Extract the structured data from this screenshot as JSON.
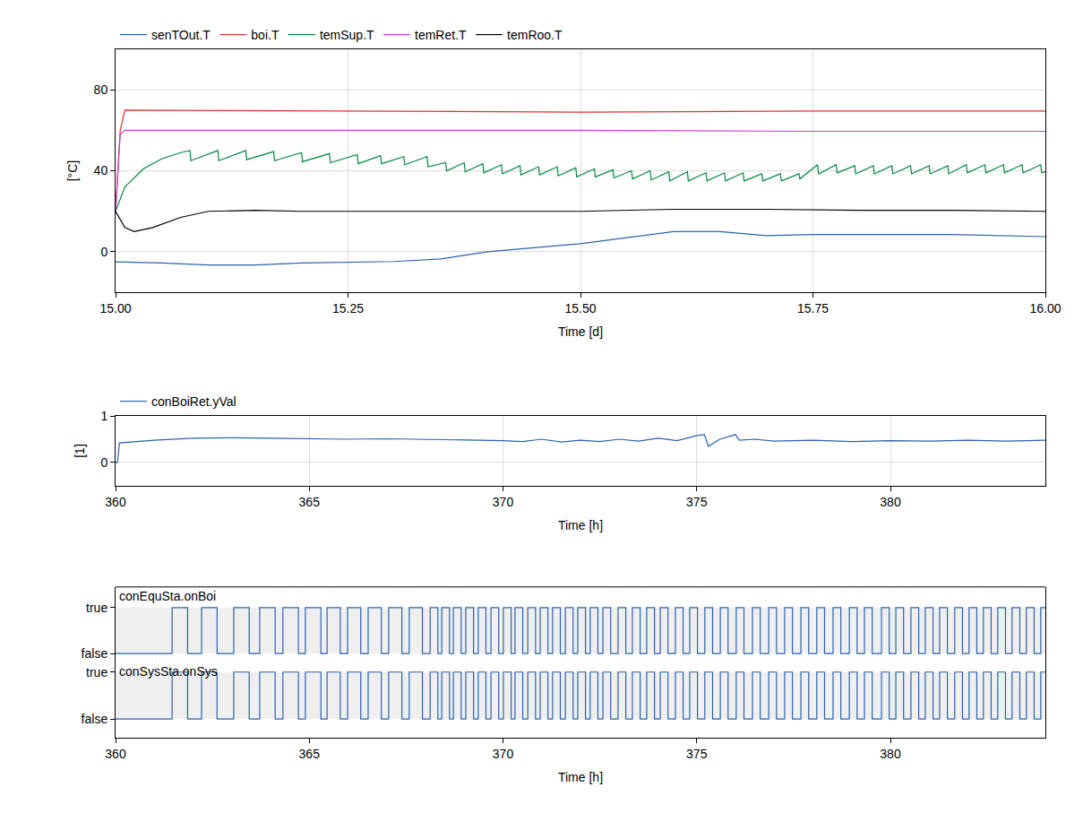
{
  "chart_data": [
    {
      "type": "line",
      "x_label": "Time [d]",
      "y_label": "[°C]",
      "grid": true,
      "legend": "top",
      "xlim": [
        15,
        16
      ],
      "xticks": [
        {
          "value": 15,
          "label": "15.00"
        },
        {
          "value": 15.25,
          "label": "15.25"
        },
        {
          "value": 15.5,
          "label": "15.50"
        },
        {
          "value": 15.75,
          "label": "15.75"
        },
        {
          "value": 16,
          "label": "16.00"
        }
      ],
      "ylim": [
        -20,
        100
      ],
      "yticks": [
        0,
        40,
        80
      ],
      "series": [
        {
          "name": "senTOut.T",
          "color": "#2a62b0",
          "x": [
            15,
            15.05,
            15.1,
            15.15,
            15.2,
            15.25,
            15.3,
            15.35,
            15.4,
            15.45,
            15.5,
            15.55,
            15.6,
            15.65,
            15.7,
            15.75,
            15.8,
            15.9,
            16
          ],
          "values": [
            -5,
            -5.5,
            -6.5,
            -6.5,
            -5.5,
            -5,
            -4.8,
            -3.5,
            0,
            2,
            4,
            7,
            10,
            10,
            8,
            8.5,
            8.5,
            8.5,
            7.5
          ]
        },
        {
          "name": "boi.T",
          "color": "#e0302e",
          "x": [
            15,
            15.005,
            15.01,
            15.25,
            15.5,
            15.75,
            16
          ],
          "values": [
            20,
            60,
            70,
            69.5,
            69,
            69.5,
            69.5
          ]
        },
        {
          "name": "temSup.T",
          "color": "#00873e",
          "x": [
            15,
            15.01,
            15.03,
            15.05,
            15.07,
            15.08,
            15.081,
            15.11,
            15.111,
            15.14,
            15.141,
            15.17,
            15.171,
            15.2,
            15.201,
            15.23,
            15.231,
            15.26,
            15.261,
            15.285,
            15.286,
            15.31,
            15.311,
            15.335,
            15.336,
            15.355,
            15.356,
            15.375,
            15.376,
            15.395,
            15.396,
            15.415,
            15.416,
            15.435,
            15.436,
            15.455,
            15.456,
            15.475,
            15.476,
            15.495,
            15.496,
            15.515,
            15.516,
            15.535,
            15.536,
            15.555,
            15.556,
            15.575,
            15.576,
            15.595,
            15.596,
            15.615,
            15.616,
            15.635,
            15.636,
            15.655,
            15.656,
            15.675,
            15.676,
            15.695,
            15.696,
            15.715,
            15.716,
            15.735,
            15.736,
            15.755,
            15.756,
            15.775,
            15.776,
            15.795,
            15.796,
            15.815,
            15.816,
            15.835,
            15.836,
            15.855,
            15.856,
            15.875,
            15.876,
            15.895,
            15.896,
            15.915,
            15.916,
            15.935,
            15.936,
            15.955,
            15.956,
            15.975,
            15.976,
            15.995,
            15.996,
            16
          ],
          "values": [
            20,
            32,
            41,
            46,
            49,
            50,
            45,
            50,
            45,
            50,
            45.5,
            49.5,
            45,
            49,
            44.5,
            48.5,
            44,
            48,
            43.5,
            47.5,
            43.5,
            47,
            43,
            47,
            42,
            44,
            40,
            44,
            39.5,
            43.5,
            39,
            43,
            38.5,
            42.5,
            38,
            42,
            38,
            42,
            37.5,
            41.5,
            37,
            41,
            37,
            40.5,
            36.5,
            40,
            36,
            40,
            35.5,
            39.5,
            35,
            39.5,
            35,
            39,
            35,
            39,
            35,
            39,
            35,
            38.5,
            35,
            38.5,
            35,
            38.5,
            36,
            43,
            38.5,
            43,
            39,
            42.5,
            38.5,
            42.5,
            38.5,
            42.5,
            38.5,
            42.5,
            38.5,
            42.5,
            38.5,
            42.5,
            38.5,
            43,
            39,
            43,
            39,
            43,
            39,
            43,
            39,
            43,
            39,
            39.5
          ]
        },
        {
          "name": "temRet.T",
          "color": "#d040d0",
          "x": [
            15,
            15.005,
            15.01,
            15.5,
            15.75,
            16
          ],
          "values": [
            20,
            58,
            60,
            60,
            59.5,
            59.5
          ]
        },
        {
          "name": "temRoo.T",
          "color": "#000000",
          "x": [
            15,
            15.01,
            15.02,
            15.04,
            15.07,
            15.1,
            15.15,
            15.2,
            15.3,
            15.4,
            15.5,
            15.6,
            15.7,
            15.8,
            15.9,
            16
          ],
          "values": [
            20,
            12,
            10,
            12,
            17,
            20,
            20.5,
            20,
            20,
            20,
            20,
            21,
            21,
            20.5,
            20.5,
            20
          ]
        }
      ]
    },
    {
      "type": "line",
      "x_label": "Time [h]",
      "y_label": "[1]",
      "grid": true,
      "legend": "top",
      "xlim": [
        360,
        384
      ],
      "xticks": [
        360,
        365,
        370,
        375,
        380
      ],
      "ylim": [
        -0.5,
        1
      ],
      "yticks": [
        0,
        1
      ],
      "series": [
        {
          "name": "conBoiRet.yVal",
          "color": "#2a62b0",
          "x": [
            360,
            360.05,
            360.1,
            361,
            362,
            363,
            364,
            365,
            366,
            367,
            368,
            369,
            370,
            370.5,
            371,
            371.5,
            372,
            372.5,
            373,
            373.5,
            374,
            374.5,
            375,
            375.2,
            375.3,
            375.6,
            376,
            376.1,
            376.5,
            377,
            378,
            379,
            380,
            381,
            382,
            383,
            384
          ],
          "values": [
            0,
            0,
            0.42,
            0.48,
            0.52,
            0.53,
            0.52,
            0.51,
            0.5,
            0.51,
            0.5,
            0.48,
            0.47,
            0.45,
            0.5,
            0.44,
            0.48,
            0.45,
            0.5,
            0.46,
            0.52,
            0.47,
            0.58,
            0.6,
            0.35,
            0.5,
            0.6,
            0.48,
            0.5,
            0.46,
            0.48,
            0.45,
            0.47,
            0.46,
            0.48,
            0.46,
            0.48
          ]
        }
      ]
    },
    {
      "type": "line",
      "x_label": "Time [h]",
      "grid": false,
      "xlim": [
        360,
        384
      ],
      "xticks": [
        360,
        365,
        370,
        375,
        380
      ],
      "ylim": [
        -0.2,
        1.45
      ],
      "yticks": [
        {
          "value": 1,
          "label": "true"
        },
        {
          "value": 0,
          "label": "false"
        }
      ],
      "y2lim": [
        -0.4,
        1.2
      ],
      "y2ticks": [
        {
          "value": 1,
          "label": "true"
        },
        {
          "value": 0,
          "label": "false"
        }
      ],
      "series": [
        {
          "name": "conEquSta.onBoi",
          "color": "#2a62b0",
          "line_style": "step",
          "x": [
            360,
            361.46,
            361.86,
            362.22,
            362.62,
            363.05,
            363.45,
            363.72,
            364.12,
            364.32,
            364.72,
            364.9,
            365.3,
            365.46,
            365.8,
            365.99,
            366.33,
            366.52,
            366.86,
            367.05,
            367.39,
            367.58,
            367.92,
            368.12,
            368.32,
            368.42,
            368.62,
            368.72,
            368.92,
            369.04,
            369.24,
            369.36,
            369.56,
            369.69,
            369.89,
            370.01,
            370.21,
            370.31,
            370.51,
            370.64,
            370.84,
            370.96,
            371.16,
            371.28,
            371.48,
            371.61,
            371.81,
            371.93,
            372.13,
            372.25,
            372.45,
            372.58,
            372.78,
            372.97,
            373.17,
            373.34,
            373.54,
            373.71,
            373.91,
            374.06,
            374.26,
            374.45,
            374.65,
            374.82,
            375.02,
            375.21,
            375.41,
            375.61,
            375.81,
            376.02,
            376.22,
            376.44,
            376.64,
            376.86,
            377.06,
            377.27,
            377.47,
            377.69,
            377.89,
            378.1,
            378.3,
            378.52,
            378.72,
            378.94,
            379.14,
            379.33,
            379.53,
            379.77,
            379.97,
            380.14,
            380.34,
            380.53,
            380.73,
            380.9,
            381.1,
            381.27,
            381.47,
            381.66,
            381.86,
            382.03,
            382.23,
            382.4,
            382.6,
            382.77,
            382.97,
            383.14,
            383.34,
            383.51,
            383.71,
            383.88,
            384
          ],
          "values": [
            0,
            1,
            0,
            1,
            0,
            1,
            0,
            1,
            0,
            1,
            0,
            1,
            0,
            1,
            0,
            1,
            0,
            1,
            0,
            1,
            0,
            1,
            0,
            1,
            0,
            1,
            0,
            1,
            0,
            1,
            0,
            1,
            0,
            1,
            0,
            1,
            0,
            1,
            0,
            1,
            0,
            1,
            0,
            1,
            0,
            1,
            0,
            1,
            0,
            1,
            0,
            1,
            0,
            1,
            0,
            1,
            0,
            1,
            0,
            1,
            0,
            1,
            0,
            1,
            0,
            1,
            0,
            1,
            0,
            1,
            0,
            1,
            0,
            1,
            0,
            1,
            0,
            1,
            0,
            1,
            0,
            1,
            0,
            1,
            0,
            1,
            0,
            1,
            0,
            1,
            0,
            1,
            0,
            1,
            0,
            1,
            0,
            1,
            0,
            1,
            0,
            1,
            0,
            1,
            0,
            1,
            0,
            1,
            0,
            1,
            1
          ]
        },
        {
          "name": "conSysSta.onSys",
          "color": "#2a62b0",
          "line_style": "step",
          "axis": "y2",
          "x": [
            360,
            361.46,
            361.86,
            362.22,
            362.62,
            363.05,
            363.45,
            363.72,
            364.12,
            364.32,
            364.72,
            364.9,
            365.3,
            365.46,
            365.8,
            365.99,
            366.33,
            366.52,
            366.86,
            367.05,
            367.39,
            367.58,
            367.92,
            368.12,
            368.32,
            368.42,
            368.62,
            368.72,
            368.92,
            369.04,
            369.24,
            369.36,
            369.56,
            369.69,
            369.89,
            370.01,
            370.21,
            370.31,
            370.51,
            370.64,
            370.84,
            370.96,
            371.16,
            371.28,
            371.48,
            371.61,
            371.81,
            371.93,
            372.13,
            372.25,
            372.45,
            372.58,
            372.78,
            372.97,
            373.17,
            373.34,
            373.54,
            373.71,
            373.91,
            374.06,
            374.26,
            374.45,
            374.65,
            374.82,
            375.02,
            375.21,
            375.41,
            375.61,
            375.81,
            376.02,
            376.22,
            376.44,
            376.64,
            376.86,
            377.06,
            377.27,
            377.47,
            377.69,
            377.89,
            378.1,
            378.3,
            378.52,
            378.72,
            378.94,
            379.14,
            379.33,
            379.53,
            379.77,
            379.97,
            380.14,
            380.34,
            380.53,
            380.73,
            380.9,
            381.1,
            381.27,
            381.47,
            381.66,
            381.86,
            382.03,
            382.23,
            382.4,
            382.6,
            382.77,
            382.97,
            383.14,
            383.34,
            383.51,
            383.71,
            383.88,
            384
          ],
          "values": [
            0,
            1,
            0,
            1,
            0,
            1,
            0,
            1,
            0,
            1,
            0,
            1,
            0,
            1,
            0,
            1,
            0,
            1,
            0,
            1,
            0,
            1,
            0,
            1,
            0,
            1,
            0,
            1,
            0,
            1,
            0,
            1,
            0,
            1,
            0,
            1,
            0,
            1,
            0,
            1,
            0,
            1,
            0,
            1,
            0,
            1,
            0,
            1,
            0,
            1,
            0,
            1,
            0,
            1,
            0,
            1,
            0,
            1,
            0,
            1,
            0,
            1,
            0,
            1,
            0,
            1,
            0,
            1,
            0,
            1,
            0,
            1,
            0,
            1,
            0,
            1,
            0,
            1,
            0,
            1,
            0,
            1,
            0,
            1,
            0,
            1,
            0,
            1,
            0,
            1,
            0,
            1,
            0,
            1,
            0,
            1,
            0,
            1,
            0,
            1,
            0,
            1,
            0,
            1,
            0,
            1,
            0,
            1,
            0,
            1,
            1
          ]
        }
      ]
    }
  ]
}
